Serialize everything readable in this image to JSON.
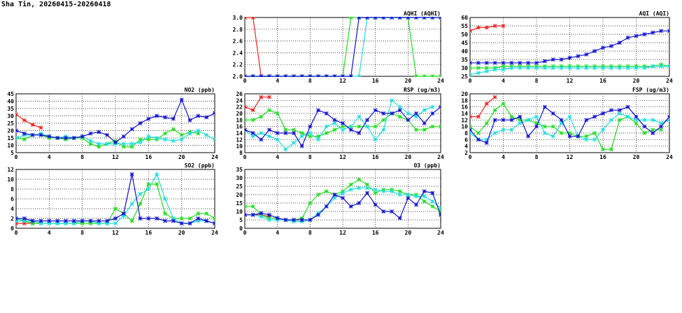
{
  "title": "Sha Tin, 20260415-20260418",
  "colors": {
    "day1": "#ee2222",
    "day2": "#22dd22",
    "day3": "#22dddd",
    "day4": "#1111cc"
  },
  "chart_data": [
    {
      "id": "aqhi",
      "type": "line",
      "title": "AQHI (AQHI)",
      "xlim": [
        0,
        24
      ],
      "xticks": [
        0,
        4,
        8,
        12,
        16,
        20,
        24
      ],
      "ylim": [
        2.0,
        3.0
      ],
      "yticks": [
        "2.0",
        "2.2",
        "2.4",
        "2.6",
        "2.8",
        "3.0"
      ],
      "grid": true,
      "series": [
        {
          "values": [
            3.0,
            3.0,
            2.0,
            2.0
          ]
        },
        {
          "values": [
            2,
            2,
            2,
            2,
            2,
            2,
            2,
            2,
            2,
            2,
            2,
            2,
            2,
            3,
            3,
            3,
            3,
            3,
            3,
            3,
            3,
            2,
            2,
            2,
            2
          ]
        },
        {
          "values": [
            2,
            2,
            2,
            2,
            2,
            2,
            2,
            2,
            2,
            2,
            2,
            2,
            2,
            2,
            2,
            3,
            3,
            3,
            3,
            3,
            3,
            3,
            3,
            3,
            3
          ]
        },
        {
          "values": [
            2,
            2,
            2,
            2,
            2,
            2,
            2,
            2,
            2,
            2,
            2,
            2,
            2,
            2,
            3,
            3,
            3,
            3,
            3,
            3,
            3,
            3,
            3,
            3,
            3
          ]
        }
      ]
    },
    {
      "id": "aqi",
      "type": "line",
      "title": "AQI (AQI)",
      "xlim": [
        0,
        24
      ],
      "xticks": [
        0,
        4,
        8,
        12,
        16,
        20,
        24
      ],
      "ylim": [
        25,
        60
      ],
      "yticks": [
        "25",
        "30",
        "35",
        "40",
        "45",
        "50",
        "55",
        "60"
      ],
      "grid": true,
      "series": [
        {
          "values": [
            52,
            54,
            54,
            55,
            55
          ]
        },
        {
          "values": [
            30,
            30,
            30,
            30,
            31,
            31,
            31,
            31,
            31,
            31,
            31,
            31,
            31,
            31,
            31,
            31,
            31,
            31,
            31,
            31,
            31,
            31,
            31,
            32,
            31
          ]
        },
        {
          "values": [
            26,
            27,
            28,
            29,
            29,
            30,
            30,
            30,
            30,
            30,
            30,
            30,
            30,
            30,
            30,
            30,
            30,
            30,
            30,
            30,
            30,
            30,
            31,
            31,
            31
          ]
        },
        {
          "values": [
            33,
            33,
            33,
            33,
            33,
            33,
            33,
            33,
            33,
            34,
            35,
            35,
            36,
            37,
            38,
            40,
            42,
            43,
            45,
            48,
            49,
            50,
            51,
            52,
            52
          ]
        }
      ]
    },
    {
      "id": "no2",
      "type": "line",
      "title": "NO2 (ppb)",
      "xlim": [
        0,
        24
      ],
      "xticks": [
        0,
        4,
        8,
        12,
        16,
        20,
        24
      ],
      "ylim": [
        5,
        45
      ],
      "yticks": [
        "5",
        "10",
        "15",
        "20",
        "25",
        "30",
        "35",
        "40",
        "45"
      ],
      "grid": true,
      "series": [
        {
          "values": [
            31,
            27,
            24,
            22
          ]
        },
        {
          "values": [
            15,
            14,
            17,
            17,
            15,
            15,
            14,
            15,
            15,
            11,
            9,
            11,
            13,
            9,
            9,
            14,
            14,
            14,
            18,
            21,
            17,
            19,
            18
          ]
        },
        {
          "values": [
            15,
            17,
            17,
            18,
            16,
            15,
            16,
            15,
            16,
            13,
            11,
            11,
            11,
            11,
            11,
            12,
            16,
            15,
            14,
            13,
            14,
            18,
            20,
            17,
            14
          ]
        },
        {
          "values": [
            20,
            18,
            17,
            17,
            16,
            15,
            15,
            15,
            16,
            18,
            19,
            17,
            12,
            16,
            21,
            25,
            28,
            30,
            29,
            28,
            41,
            27,
            30,
            29,
            32
          ]
        }
      ]
    },
    {
      "id": "rsp",
      "type": "line",
      "title": "RSP (ug/m3)",
      "xlim": [
        0,
        24
      ],
      "xticks": [
        0,
        4,
        8,
        12,
        16,
        20,
        24
      ],
      "ylim": [
        8,
        26
      ],
      "yticks": [
        "8",
        "10",
        "12",
        "14",
        "16",
        "18",
        "20",
        "22",
        "24",
        "26"
      ],
      "grid": true,
      "series": [
        {
          "values": [
            22,
            21,
            25,
            25
          ]
        },
        {
          "values": [
            18,
            18,
            19,
            21,
            20,
            15,
            15,
            14,
            13,
            13,
            14,
            15,
            16,
            16,
            16,
            16,
            16,
            18,
            20,
            19,
            18,
            15,
            15,
            16,
            16
          ]
        },
        {
          "values": [
            15,
            13,
            14,
            13,
            12,
            9,
            11,
            13,
            14,
            12,
            16,
            17,
            15,
            16,
            19,
            16,
            12,
            15,
            24,
            22,
            20,
            19,
            21,
            22
          ]
        },
        {
          "values": [
            15,
            14,
            12,
            15,
            14,
            14,
            14,
            10,
            16,
            21,
            20,
            18,
            17,
            15,
            14,
            18,
            21,
            20,
            20,
            21,
            18,
            20,
            17,
            20,
            22
          ]
        }
      ]
    },
    {
      "id": "fsp",
      "type": "line",
      "title": "FSP (ug/m3)",
      "xlim": [
        0,
        24
      ],
      "xticks": [
        0,
        4,
        8,
        12,
        16,
        20,
        24
      ],
      "ylim": [
        2,
        20
      ],
      "yticks": [
        "2",
        "4",
        "6",
        "8",
        "10",
        "12",
        "14",
        "16",
        "18",
        "20"
      ],
      "grid": true,
      "series": [
        {
          "values": [
            13,
            13,
            17,
            19
          ]
        },
        {
          "values": [
            10,
            8,
            11,
            15,
            17,
            13,
            12,
            12,
            11,
            10,
            10,
            8,
            8,
            7,
            7,
            8,
            3,
            3,
            12,
            13,
            11,
            8,
            9,
            9
          ]
        },
        {
          "values": [
            8,
            6,
            6,
            8,
            9,
            9,
            11,
            12,
            13,
            8,
            7,
            11,
            13,
            7,
            6,
            6,
            9,
            12,
            14,
            13,
            12,
            12,
            12,
            11,
            12
          ]
        },
        {
          "values": [
            9,
            6,
            5,
            12,
            12,
            12,
            13,
            7,
            10,
            16,
            14,
            12,
            7,
            7,
            12,
            13,
            14,
            15,
            15,
            16,
            13,
            10,
            8,
            10,
            13
          ]
        }
      ]
    },
    {
      "id": "so2",
      "type": "line",
      "title": "SO2 (ppb)",
      "xlim": [
        0,
        24
      ],
      "xticks": [
        0,
        4,
        8,
        12,
        16,
        20,
        24
      ],
      "ylim": [
        0,
        12
      ],
      "yticks": [
        "0",
        "2",
        "4",
        "6",
        "8",
        "10",
        "12"
      ],
      "grid": true,
      "series": [
        {
          "values": [
            1,
            1,
            1,
            1
          ]
        },
        {
          "values": [
            2,
            1.5,
            1,
            1,
            1,
            1,
            1,
            1,
            1,
            1,
            1,
            1,
            4,
            3,
            1.5,
            5,
            9,
            9,
            3,
            2,
            2,
            2,
            3,
            3,
            2
          ]
        },
        {
          "values": [
            1.5,
            1.5,
            1.5,
            1,
            1,
            1,
            1,
            1,
            1.5,
            1.5,
            1,
            1,
            1,
            2.5,
            5,
            7,
            8,
            11,
            6,
            2,
            1,
            1,
            1.5,
            1.5,
            1
          ]
        },
        {
          "values": [
            2,
            2,
            1.5,
            1.5,
            1.5,
            1.5,
            1.5,
            1.5,
            1.5,
            1.5,
            1.5,
            1.5,
            2,
            3,
            11,
            2,
            2,
            2,
            1.5,
            1.5,
            1,
            1,
            2,
            1.5,
            1
          ]
        }
      ]
    },
    {
      "id": "o3",
      "type": "line",
      "title": "O3 (ppb)",
      "xlim": [
        0,
        24
      ],
      "xticks": [
        0,
        4,
        8,
        12,
        16,
        20,
        24
      ],
      "ylim": [
        0,
        35
      ],
      "yticks": [
        "0",
        "5",
        "10",
        "15",
        "20",
        "25",
        "30",
        "35"
      ],
      "grid": true,
      "series": [
        {
          "values": [
            8,
            8,
            8,
            7
          ]
        },
        {
          "values": [
            13,
            13,
            8,
            6,
            6,
            5,
            5,
            6,
            15,
            20,
            22,
            20,
            22,
            26,
            29,
            26,
            21,
            23,
            23,
            22,
            20,
            20,
            16,
            13,
            10
          ]
        },
        {
          "values": [
            8,
            8,
            7,
            5,
            5,
            5,
            4,
            4,
            5,
            9,
            13,
            18,
            21,
            23,
            24,
            24,
            23,
            22,
            22,
            20,
            20,
            19,
            19,
            16,
            12
          ]
        },
        {
          "values": [
            8,
            8,
            9,
            8,
            6,
            5,
            5,
            5,
            5,
            8,
            13,
            20,
            18,
            13,
            15,
            21,
            14,
            10,
            10,
            6,
            18,
            14,
            22,
            21,
            8
          ]
        }
      ]
    }
  ]
}
